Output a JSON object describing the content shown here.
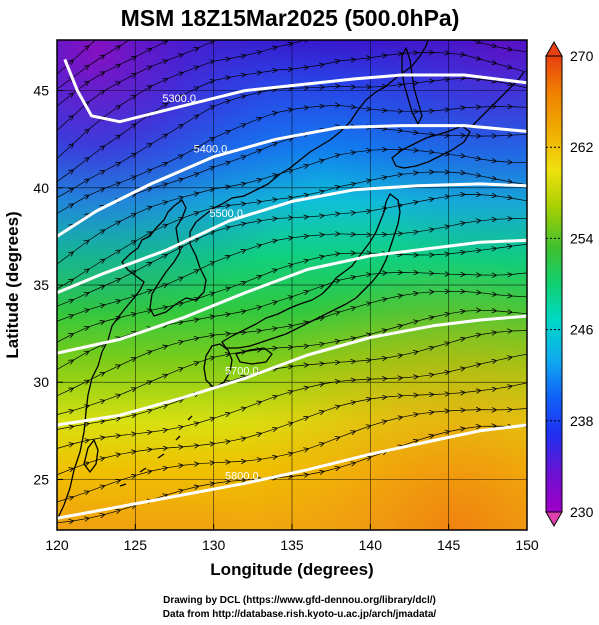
{
  "title": "MSM 18Z15Mar2025 (500.0hPa)",
  "colors": {
    "contour": "#ffffff",
    "coast": "#000000",
    "grid": "#000000",
    "streamline": "#000000"
  },
  "chart_data": {
    "type": "heatmap",
    "xlabel": "Longitude (degrees)",
    "ylabel": "Latitude  (degrees)",
    "xlim": [
      120,
      150
    ],
    "ylim": [
      22.4,
      47.6
    ],
    "xticks": [
      "120",
      "125",
      "130",
      "135",
      "140",
      "145",
      "150"
    ],
    "yticks": [
      "25",
      "30",
      "35",
      "40",
      "45"
    ],
    "grid": true,
    "colorbar": {
      "min": 230,
      "max": 270,
      "ticks": [
        "270",
        "262",
        "254",
        "246",
        "238",
        "230"
      ],
      "palette": [
        "#a000c8",
        "#7010d0",
        "#2030f0",
        "#1060f8",
        "#10a8f0",
        "#00d8c8",
        "#10d070",
        "#40c030",
        "#a8d000",
        "#f0e010",
        "#f0b000",
        "#f08000",
        "#e84010"
      ]
    },
    "contours": [
      {
        "value": 5300,
        "label": "5300.0",
        "points": [
          [
            120.5,
            46.6
          ],
          [
            121.3,
            45.0
          ],
          [
            122.2,
            43.7
          ],
          [
            124,
            43.4
          ],
          [
            128,
            44.2
          ],
          [
            132,
            45.0
          ],
          [
            135.5,
            45.3
          ],
          [
            139,
            45.6
          ],
          [
            142,
            45.8
          ],
          [
            146,
            45.8
          ],
          [
            150,
            45.4
          ]
        ]
      },
      {
        "value": 5400,
        "label": "5400.0",
        "points": [
          [
            120,
            37.5
          ],
          [
            122.5,
            38.8
          ],
          [
            126,
            40.2
          ],
          [
            130,
            41.6
          ],
          [
            134,
            42.5
          ],
          [
            138,
            43.1
          ],
          [
            142,
            43.2
          ],
          [
            146,
            43.2
          ],
          [
            150,
            42.9
          ]
        ]
      },
      {
        "value": 5500,
        "label": "5500.0",
        "points": [
          [
            120,
            34.6
          ],
          [
            123,
            35.6
          ],
          [
            127,
            36.8
          ],
          [
            131,
            38.3
          ],
          [
            135,
            39.3
          ],
          [
            139,
            39.9
          ],
          [
            143,
            40.1
          ],
          [
            147,
            40.2
          ],
          [
            150,
            40.1
          ]
        ]
      },
      {
        "value": 5600,
        "label": "",
        "points": [
          [
            120,
            31.5
          ],
          [
            124,
            32.2
          ],
          [
            128,
            33.3
          ],
          [
            132,
            34.6
          ],
          [
            136,
            35.8
          ],
          [
            140,
            36.5
          ],
          [
            144,
            36.9
          ],
          [
            147,
            37.2
          ],
          [
            150,
            37.3
          ]
        ]
      },
      {
        "value": 5700,
        "label": "5700.0",
        "points": [
          [
            120,
            27.8
          ],
          [
            124,
            28.3
          ],
          [
            128,
            29.2
          ],
          [
            132,
            30.2
          ],
          [
            136,
            31.4
          ],
          [
            140,
            32.3
          ],
          [
            144,
            32.9
          ],
          [
            147,
            33.2
          ],
          [
            150,
            33.4
          ]
        ]
      },
      {
        "value": 5800,
        "label": "5800.0",
        "points": [
          [
            120,
            23.0
          ],
          [
            124,
            23.6
          ],
          [
            128,
            24.2
          ],
          [
            132,
            24.8
          ],
          [
            136,
            25.5
          ],
          [
            140,
            26.3
          ],
          [
            144,
            27.0
          ],
          [
            147,
            27.5
          ],
          [
            150,
            27.8
          ]
        ]
      }
    ]
  },
  "credits": {
    "line1": "Drawing by DCL (https://www.gfd-dennou.org/library/dcl/)",
    "line2": "Data from http://database.rish.kyoto-u.ac.jp/arch/jmadata/"
  }
}
